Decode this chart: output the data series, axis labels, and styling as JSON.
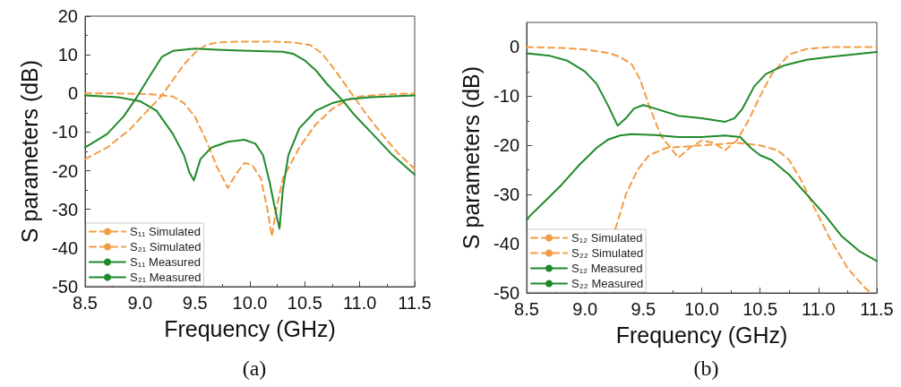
{
  "chart_data": [
    {
      "type": "line",
      "title": "(a)",
      "xlabel": "Frequency (GHz)",
      "ylabel": "S parameters (dB)",
      "xlim": [
        8.5,
        11.5
      ],
      "xticks": [
        {
          "value": 8.5,
          "label": "8.5"
        },
        {
          "value": 9,
          "label": "9.0"
        },
        {
          "value": 9.5,
          "label": "9.5"
        },
        {
          "value": 10,
          "label": "10.0"
        },
        {
          "value": 10.5,
          "label": "10.5"
        },
        {
          "value": 11,
          "label": "11.0"
        },
        {
          "value": 11.5,
          "label": "11.5"
        }
      ],
      "ylim": [
        -50,
        20
      ],
      "yticks": [
        -50,
        -40,
        -30,
        -20,
        -10,
        0,
        10,
        20
      ],
      "grid": false,
      "legend": "bottom left",
      "marker": "none",
      "series": [
        {
          "name": "S₁₁ Simulated",
          "color": "#f39c45",
          "line_style": "dashed",
          "x": [
            8.5,
            8.8,
            9.1,
            9.3,
            9.4,
            9.5,
            9.6,
            9.7,
            9.8,
            9.87,
            9.95,
            10.02,
            10.1,
            10.16,
            10.2,
            10.24,
            10.3,
            10.45,
            10.6,
            10.75,
            10.9,
            11.0,
            11.2,
            11.5
          ],
          "values": [
            0,
            0,
            -0.2,
            -0.8,
            -2.5,
            -6,
            -12,
            -19,
            -24.5,
            -21,
            -18,
            -18.5,
            -22,
            -30,
            -37,
            -30,
            -22,
            -14,
            -8,
            -4,
            -1.5,
            -0.8,
            -0.3,
            0
          ]
        },
        {
          "name": "S₂₁ Simulated",
          "color": "#f39c45",
          "line_style": "dashed",
          "x": [
            8.5,
            8.7,
            8.9,
            9.05,
            9.2,
            9.3,
            9.4,
            9.5,
            9.6,
            9.7,
            9.9,
            10.2,
            10.4,
            10.55,
            10.65,
            10.75,
            10.85,
            10.95,
            11.05,
            11.2,
            11.35,
            11.5
          ],
          "values": [
            -17,
            -14,
            -9.5,
            -5,
            -0.5,
            3.5,
            7.5,
            10.5,
            12.5,
            13.2,
            13.4,
            13.4,
            13.2,
            12.5,
            10.5,
            7,
            3,
            -1,
            -5,
            -10.5,
            -15.5,
            -19.5
          ]
        },
        {
          "name": "S₁₁ Measured",
          "color": "#1f8a2a",
          "line_style": "solid",
          "x": [
            8.5,
            8.8,
            9.0,
            9.15,
            9.3,
            9.4,
            9.45,
            9.49,
            9.55,
            9.65,
            9.8,
            9.95,
            10.05,
            10.12,
            10.18,
            10.23,
            10.27,
            10.3,
            10.35,
            10.45,
            10.6,
            10.75,
            10.9,
            11.1,
            11.5
          ],
          "values": [
            -0.5,
            -1,
            -2,
            -4.5,
            -10.5,
            -16,
            -20.5,
            -22.5,
            -17,
            -14,
            -12.5,
            -12,
            -13,
            -16,
            -23,
            -30,
            -35,
            -25,
            -16,
            -9,
            -4.5,
            -2.5,
            -1.5,
            -1,
            -0.5
          ]
        },
        {
          "name": "S₂₁ Measured",
          "color": "#1f8a2a",
          "line_style": "solid",
          "x": [
            8.5,
            8.7,
            8.85,
            8.97,
            9.1,
            9.2,
            9.3,
            9.5,
            9.7,
            10.0,
            10.3,
            10.4,
            10.5,
            10.6,
            10.7,
            10.85,
            10.95,
            11.1,
            11.3,
            11.5
          ],
          "values": [
            -14,
            -10.5,
            -6,
            -1,
            5,
            9.5,
            11,
            11.6,
            11.3,
            11,
            10.8,
            10.2,
            8.5,
            6,
            2.5,
            -2,
            -5.5,
            -10,
            -16,
            -21
          ]
        }
      ]
    },
    {
      "type": "line",
      "title": "(b)",
      "xlabel": "Frequency (GHz)",
      "ylabel": "S parameters (dB)",
      "xlim": [
        8.5,
        11.5
      ],
      "xticks": [
        {
          "value": 8.5,
          "label": "8.5"
        },
        {
          "value": 9,
          "label": "9.0"
        },
        {
          "value": 9.5,
          "label": "9.5"
        },
        {
          "value": 10,
          "label": "10.0"
        },
        {
          "value": 10.5,
          "label": "10.5"
        },
        {
          "value": 11,
          "label": "11.0"
        },
        {
          "value": 11.5,
          "label": "11.5"
        }
      ],
      "ylim": [
        -50,
        5
      ],
      "yticks": [
        -50,
        -40,
        -30,
        -20,
        -10,
        0
      ],
      "grid": false,
      "legend": "bottom left",
      "marker": "none",
      "series": [
        {
          "name": "S₁₂ Simulated",
          "color": "#f39c45",
          "line_style": "dashed",
          "x": [
            8.5,
            8.8,
            9.0,
            9.2,
            9.3,
            9.4,
            9.47,
            9.55,
            9.65,
            9.8,
            9.9,
            10.0,
            10.1,
            10.2,
            10.3,
            10.4,
            10.5,
            10.6,
            10.75,
            10.9,
            11.1,
            11.5
          ],
          "values": [
            0,
            -0.2,
            -0.5,
            -1.2,
            -2,
            -3.5,
            -6.5,
            -12,
            -18,
            -22.5,
            -20.5,
            -19,
            -19.5,
            -21,
            -19,
            -15,
            -10,
            -5.5,
            -1.5,
            -0.4,
            0,
            0
          ]
        },
        {
          "name": "S₂₂ Simulated",
          "color": "#f39c45",
          "line_style": "dashed",
          "x": [
            9.26,
            9.35,
            9.45,
            9.55,
            9.7,
            10.0,
            10.3,
            10.5,
            10.65,
            10.75,
            10.85,
            10.95,
            11.1,
            11.25,
            11.4,
            11.45
          ],
          "values": [
            -37,
            -30,
            -25,
            -22,
            -20.5,
            -20,
            -19.5,
            -20,
            -21,
            -23,
            -27,
            -32,
            -39,
            -45,
            -49,
            -50
          ]
        },
        {
          "name": "S₁₂ Measured",
          "color": "#1f8a2a",
          "line_style": "solid",
          "x": [
            8.5,
            8.7,
            8.85,
            9.0,
            9.1,
            9.2,
            9.28,
            9.35,
            9.42,
            9.5,
            9.6,
            9.8,
            10.0,
            10.2,
            10.28,
            10.35,
            10.45,
            10.55,
            10.7,
            10.9,
            11.1,
            11.5
          ],
          "values": [
            -1.3,
            -1.8,
            -2.8,
            -5,
            -7.5,
            -12,
            -16,
            -14.5,
            -12.5,
            -11.8,
            -12.5,
            -14,
            -14.5,
            -15.2,
            -14.5,
            -12.5,
            -8,
            -5.5,
            -3.8,
            -2.6,
            -2,
            -1
          ]
        },
        {
          "name": "S₂₂ Measured",
          "color": "#1f8a2a",
          "line_style": "solid",
          "x": [
            8.5,
            8.65,
            8.8,
            8.95,
            9.1,
            9.2,
            9.3,
            9.4,
            9.6,
            9.8,
            10.0,
            10.2,
            10.33,
            10.42,
            10.5,
            10.6,
            10.75,
            10.9,
            11.05,
            11.2,
            11.35,
            11.5
          ],
          "values": [
            -35,
            -31.5,
            -28,
            -24,
            -20.5,
            -18.8,
            -18,
            -17.7,
            -17.9,
            -18.3,
            -18.3,
            -18,
            -18.3,
            -20.5,
            -22,
            -23,
            -26,
            -30,
            -34,
            -38.5,
            -41.5,
            -43.5
          ]
        }
      ]
    }
  ]
}
